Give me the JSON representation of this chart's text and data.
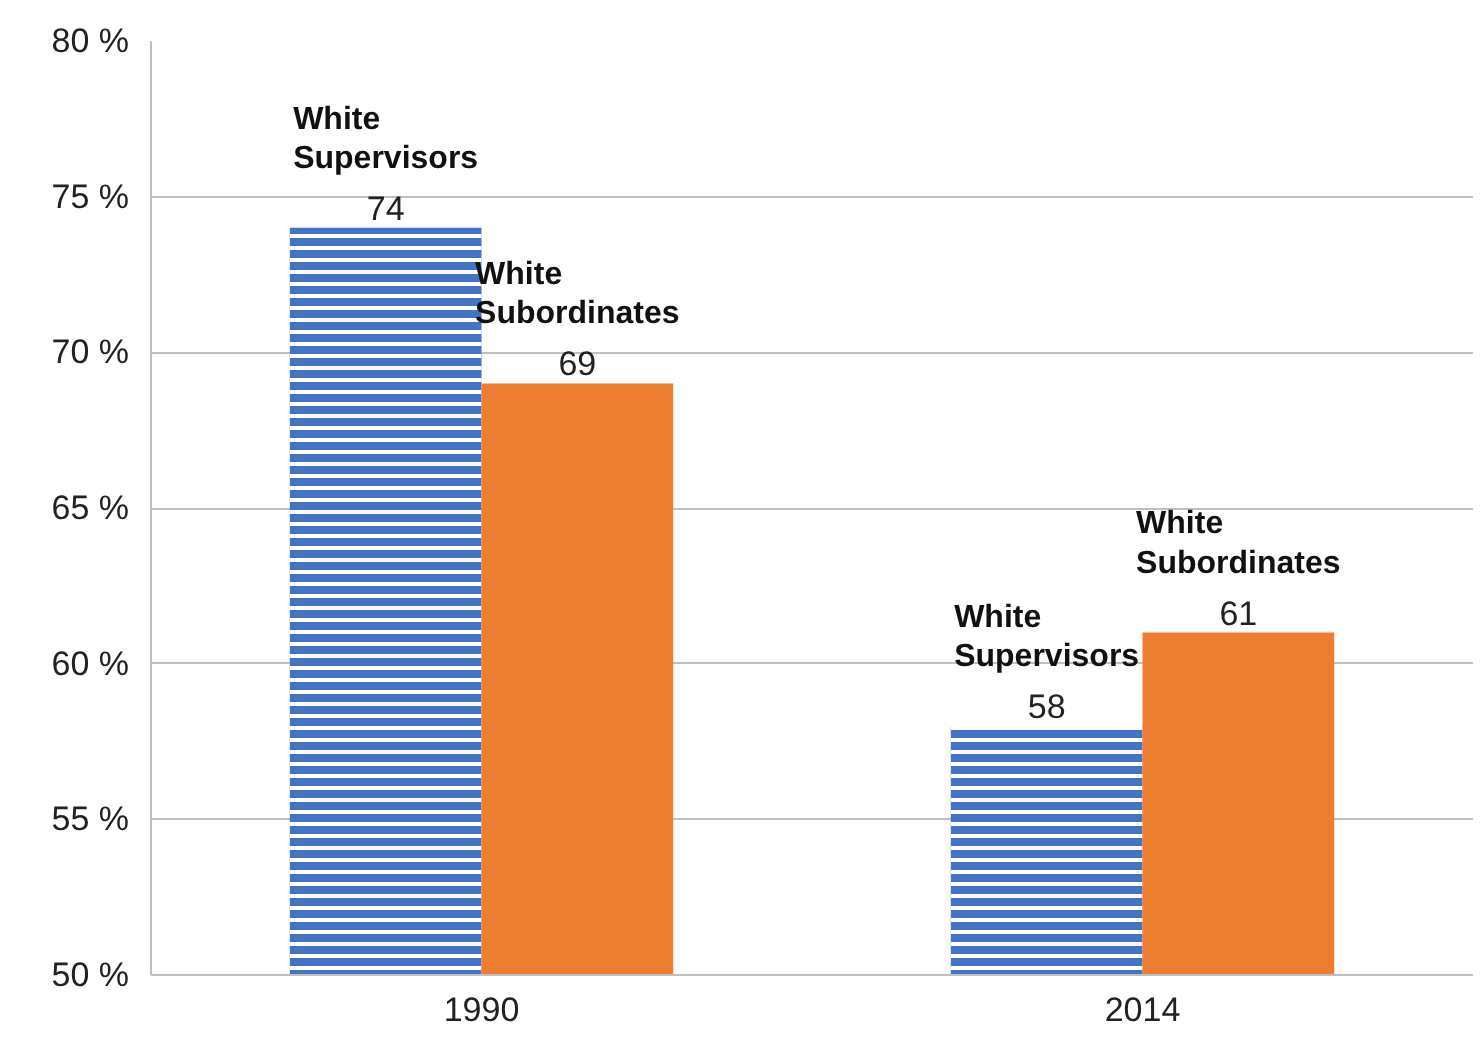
{
  "chart_data": {
    "type": "bar",
    "categories": [
      "1990",
      "2014"
    ],
    "series": [
      {
        "name": "White Supervisors",
        "color": "#4472c4",
        "values": [
          74,
          58
        ]
      },
      {
        "name": "White Subordinates",
        "color": "#ed7d31",
        "values": [
          69,
          61
        ]
      }
    ],
    "ylim": [
      50,
      80
    ],
    "yticks": [
      {
        "value": 50,
        "label": "50 %"
      },
      {
        "value": 55,
        "label": "55 %"
      },
      {
        "value": 60,
        "label": "60 %"
      },
      {
        "value": 65,
        "label": "65 %"
      },
      {
        "value": 70,
        "label": "70 %"
      },
      {
        "value": 75,
        "label": "75 %"
      },
      {
        "value": 80,
        "label": "80 %"
      }
    ],
    "grid": "y",
    "data_labels": true
  }
}
